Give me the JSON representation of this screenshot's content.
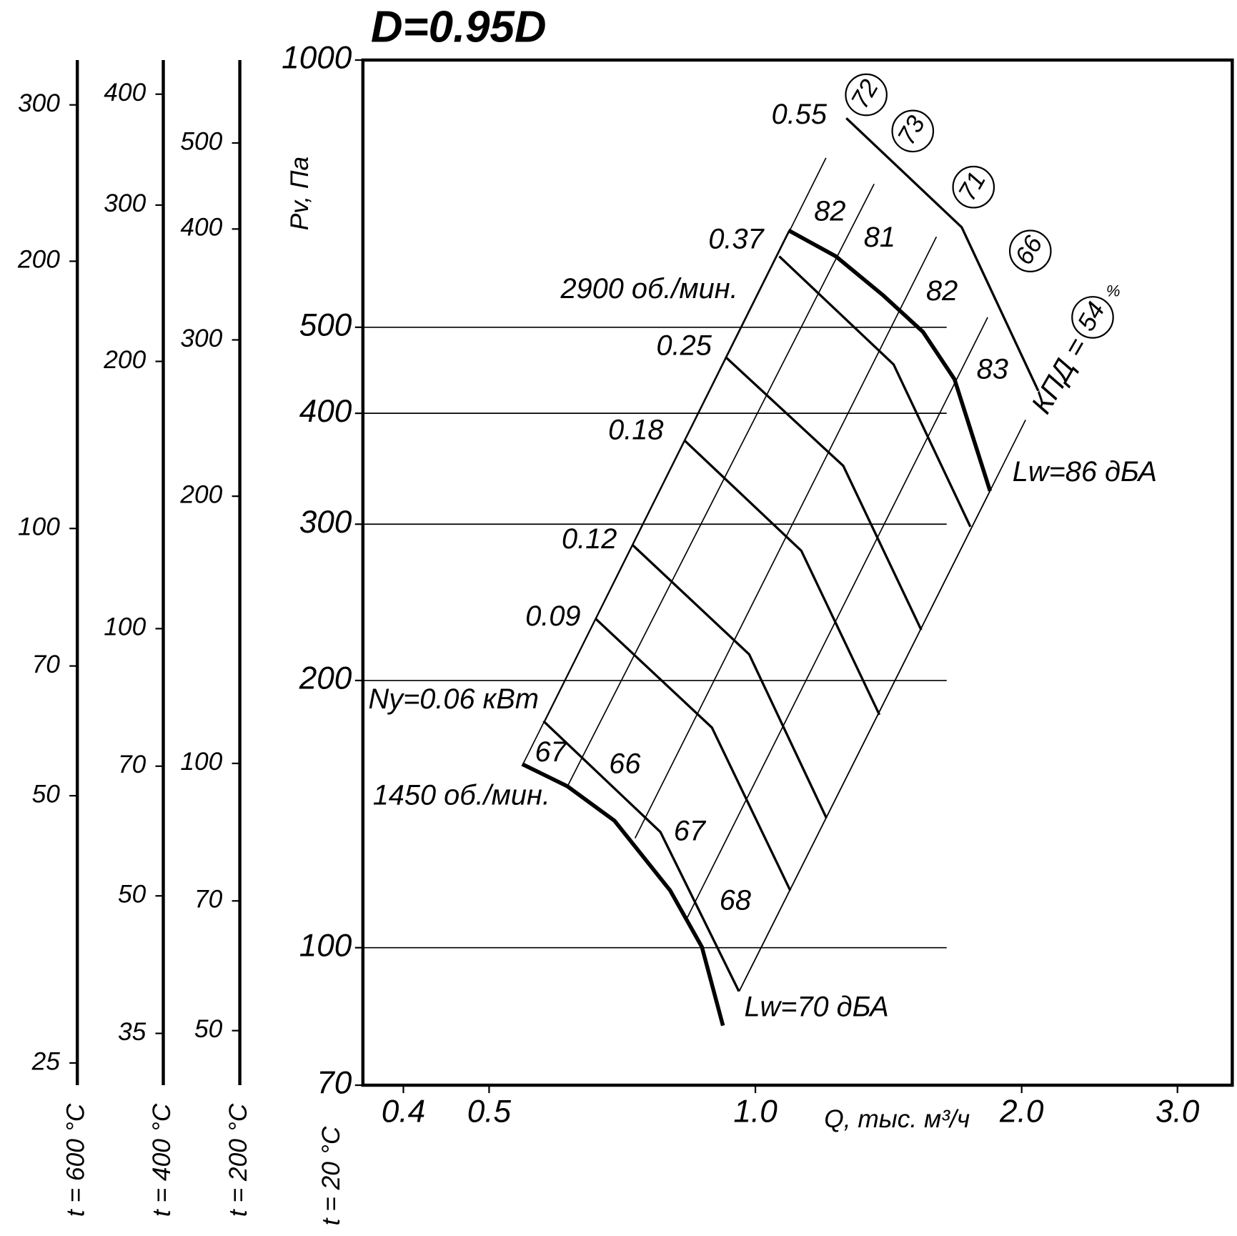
{
  "chart_data": {
    "type": "line",
    "title": "D=0.95D",
    "xlabel": "Q, тыс. м³/ч",
    "ylabel": "Pv, Па",
    "temperature_label": "t = 20 °C",
    "xscale": "log",
    "yscale": "log",
    "xlim": [
      0.36,
      3.46
    ],
    "ylim": [
      70,
      1000
    ],
    "xticks": [
      0.4,
      0.5,
      {
        "value": 1,
        "label": "1.0"
      },
      {
        "value": 2,
        "label": "2.0"
      },
      {
        "value": 3,
        "label": "3.0"
      }
    ],
    "yticks": [
      70,
      100,
      200,
      300,
      400,
      500,
      1000
    ],
    "series": [
      {
        "name": "2900 об./мин.",
        "color": "#000000",
        "line_width": 5,
        "x": [
          1.09,
          1.233,
          1.395,
          1.547,
          1.679,
          1.842
        ],
        "values": [
          643,
          601,
          543,
          494,
          437,
          327
        ]
      },
      {
        "name": "1450 об./мин.",
        "color": "#000000",
        "line_width": 5,
        "x": [
          0.545,
          0.613,
          0.693,
          0.801,
          0.87,
          0.919
        ],
        "values": [
          161,
          152,
          139,
          116,
          100.2,
          81.7
        ]
      },
      {
        "name": "0.55",
        "color": "#000000",
        "line_width": 3,
        "x": [
          1.267,
          1.711,
          2.088
        ],
        "values": [
          860,
          648,
          424
        ]
      },
      {
        "name": "0.37",
        "color": "#000000",
        "line_width": 3,
        "x": [
          1.064,
          1.433,
          1.75
        ],
        "values": [
          601,
          454,
          298
        ]
      },
      {
        "name": "0.25",
        "color": "#000000",
        "line_width": 3,
        "x": [
          0.925,
          1.257,
          1.54
        ],
        "values": [
          463,
          349,
          228
        ]
      },
      {
        "name": "0.18",
        "color": "#000000",
        "line_width": 3,
        "x": [
          0.831,
          1.127,
          1.381
        ],
        "values": [
          373,
          280,
          183
        ]
      },
      {
        "name": "0.12",
        "color": "#000000",
        "line_width": 3,
        "x": [
          0.727,
          0.984,
          1.203
        ],
        "values": [
          284,
          214,
          140
        ]
      },
      {
        "name": "0.09",
        "color": "#000000",
        "line_width": 3,
        "x": [
          0.659,
          0.893,
          1.095
        ],
        "values": [
          235,
          177,
          116
        ]
      },
      {
        "name": "Ny=0.06 кВт",
        "color": "#000000",
        "line_width": 3,
        "x": [
          0.576,
          0.781,
          0.958
        ],
        "values": [
          180,
          135,
          89.3
        ]
      }
    ],
    "annotations": [
      "82",
      "81",
      "82",
      "83",
      "67",
      "66",
      "67",
      "68",
      "Lw=86 дБА",
      "Lw=70 дБА",
      "КПД =",
      "%"
    ],
    "efficiency_labels": [
      "72",
      "73",
      "71",
      "66",
      "54"
    ],
    "temperature_scales": [
      {
        "label": "t = 600 °C",
        "ylim": [
          23.6,
          337
        ],
        "yticks": [
          25,
          50,
          70,
          100,
          200,
          300
        ]
      },
      {
        "label": "t = 400 °C",
        "ylim": [
          30.6,
          437
        ],
        "yticks": [
          35,
          50,
          70,
          100,
          200,
          300,
          400
        ]
      },
      {
        "label": "t = 200 °C",
        "ylim": [
          43.4,
          620
        ],
        "yticks": [
          50,
          70,
          100,
          200,
          300,
          400,
          500
        ]
      }
    ]
  }
}
